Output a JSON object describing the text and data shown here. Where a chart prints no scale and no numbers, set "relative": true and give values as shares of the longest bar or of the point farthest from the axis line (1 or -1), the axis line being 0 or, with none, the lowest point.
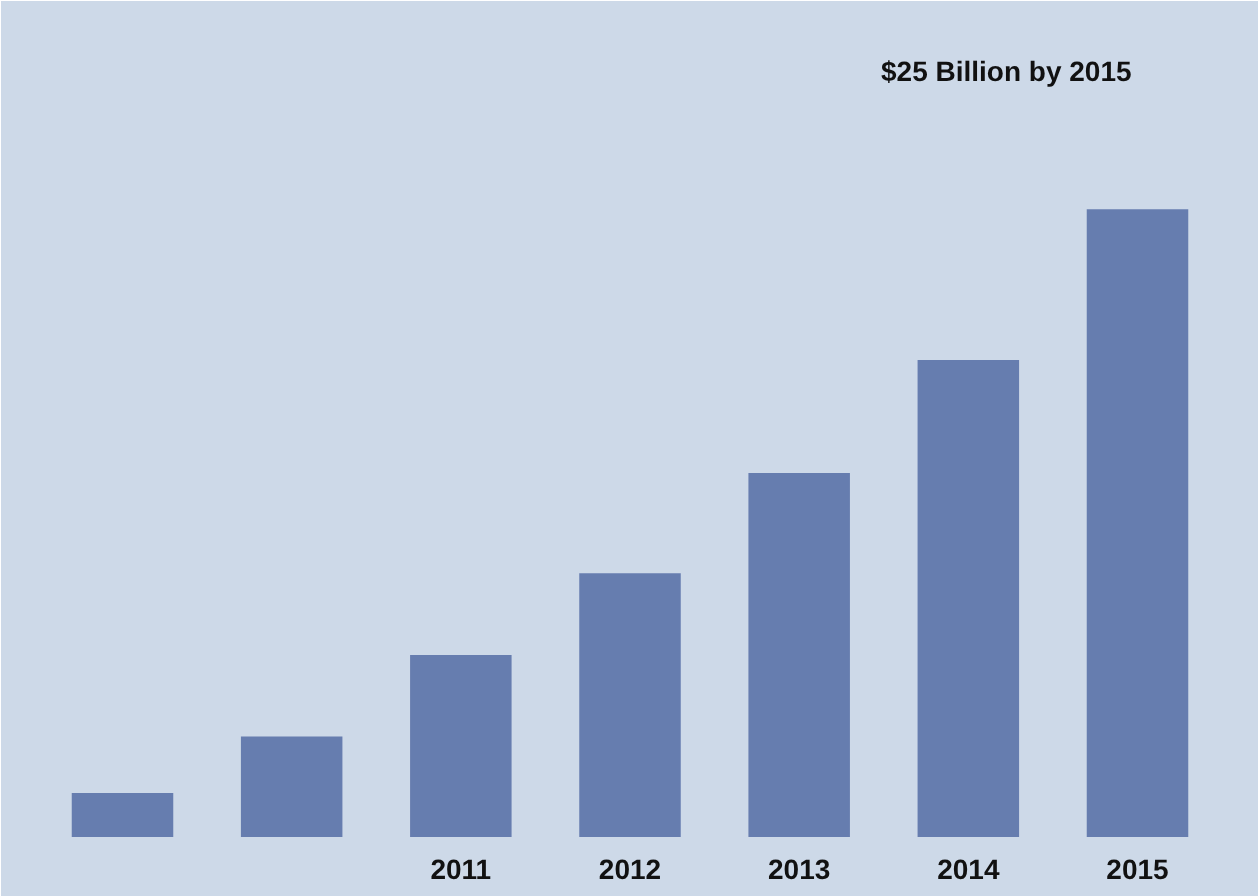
{
  "chart_data": {
    "type": "bar",
    "relative": true,
    "categories": [
      null,
      null,
      "2011",
      "2012",
      "2013",
      "2014",
      "2015"
    ],
    "values": [
      0.07,
      0.16,
      0.29,
      0.42,
      0.58,
      0.76,
      1
    ],
    "color": "#5b72a8",
    "annotations": [
      "$25 Billion by 2015"
    ]
  }
}
